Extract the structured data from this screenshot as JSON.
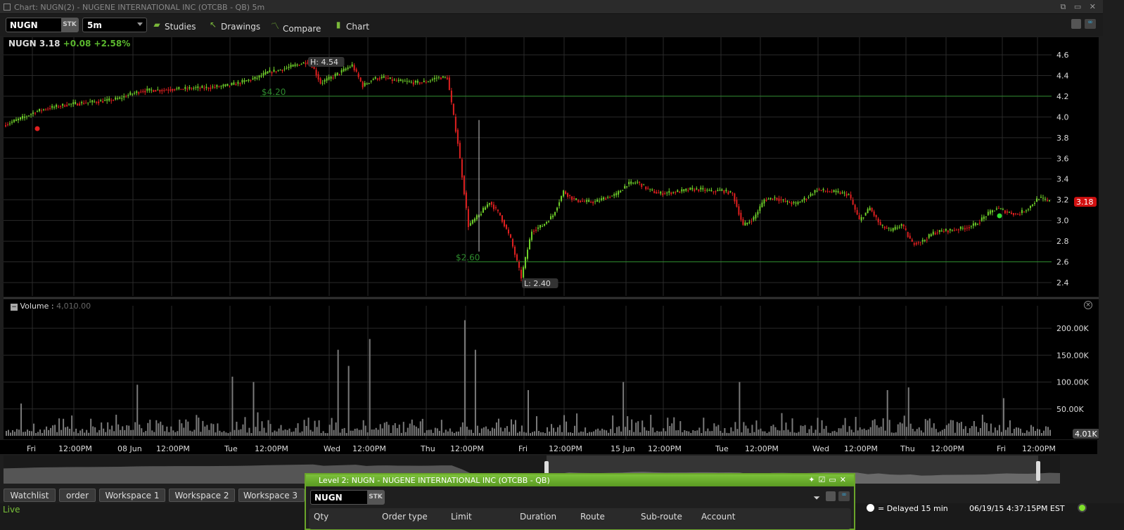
{
  "window": {
    "title": "Chart: NUGN(2) - NUGENE INTERNATIONAL INC (OTCBB - QB) 5m"
  },
  "toolbar": {
    "symbol": "NUGN",
    "sec_type": "STK",
    "interval": "5m",
    "studies": "Studies",
    "drawings": "Drawings",
    "compare": "Compare",
    "chart": "Chart"
  },
  "quote": {
    "symbol": "NUGN",
    "last": "3.18",
    "change": "+0.08",
    "change_pct": "+2.58%"
  },
  "annotations": {
    "high": "H: 4.54",
    "low": "L: 2.40",
    "line_upper": "$4.20",
    "line_lower": "$2.60",
    "last_tag": "3.18"
  },
  "volume_panel": {
    "label": "Volume :",
    "value": "4,010.00",
    "last_tag": "4.01K"
  },
  "colors": {
    "up": "#6fcf2a",
    "down": "#e02020",
    "hline": "#2e8b2e",
    "accent": "#6aa52a",
    "last_tag": "#d01010"
  },
  "chart_data": {
    "type": "candlestick",
    "price_axis": {
      "ticks": [
        "4.6",
        "4.4",
        "4.2",
        "4.0",
        "3.8",
        "3.6",
        "3.4",
        "3.2",
        "3.0",
        "2.8",
        "2.6",
        "2.4"
      ],
      "range": [
        2.4,
        4.6
      ]
    },
    "volume_axis": {
      "ticks": [
        "200.00K",
        "150.00K",
        "100.00K",
        "50.00K"
      ],
      "range": [
        0,
        200000
      ]
    },
    "x_ticks": [
      "Fri",
      "12:00PM",
      "08 Jun",
      "12:00PM",
      "Tue",
      "12:00PM",
      "Wed",
      "12:00PM",
      "Thu",
      "12:00PM",
      "Fri",
      "12:00PM",
      "15 Jun",
      "12:00PM",
      "Tue",
      "12:00PM",
      "Wed",
      "12:00PM",
      "Thu",
      "12:00PM",
      "Fri",
      "12:00PM"
    ],
    "horizontal_lines": [
      4.2,
      2.6
    ],
    "close_samples": [
      3.92,
      3.96,
      4.0,
      4.05,
      4.08,
      4.1,
      4.12,
      4.13,
      4.14,
      4.15,
      4.16,
      4.18,
      4.22,
      4.25,
      4.26,
      4.26,
      4.27,
      4.27,
      4.28,
      4.28,
      4.29,
      4.3,
      4.32,
      4.35,
      4.38,
      4.43,
      4.45,
      4.48,
      4.51,
      4.54,
      4.33,
      4.38,
      4.44,
      4.5,
      4.3,
      4.37,
      4.38,
      4.35,
      4.34,
      4.33,
      4.34,
      4.38,
      4.38,
      3.75,
      2.95,
      3.05,
      3.18,
      3.05,
      2.82,
      2.45,
      2.9,
      2.95,
      3.05,
      3.28,
      3.2,
      3.18,
      3.18,
      3.22,
      3.25,
      3.35,
      3.37,
      3.3,
      3.26,
      3.27,
      3.28,
      3.3,
      3.3,
      3.28,
      3.29,
      3.26,
      2.95,
      3.02,
      3.2,
      3.22,
      3.18,
      3.16,
      3.22,
      3.3,
      3.28,
      3.27,
      3.25,
      3.0,
      3.12,
      2.95,
      2.9,
      2.96,
      2.78,
      2.8,
      2.88,
      2.9,
      2.91,
      2.93,
      2.96,
      3.05,
      3.12,
      3.08,
      3.06,
      3.12,
      3.22,
      3.18
    ],
    "volume_spikes_k": [
      [
        1,
        60
      ],
      [
        12,
        95
      ],
      [
        21,
        110
      ],
      [
        23,
        100
      ],
      [
        31,
        160
      ],
      [
        32,
        130
      ],
      [
        34,
        180
      ],
      [
        43,
        215
      ],
      [
        44,
        160
      ],
      [
        49,
        85
      ],
      [
        58,
        100
      ],
      [
        69,
        100
      ],
      [
        83,
        85
      ],
      [
        85,
        90
      ],
      [
        94,
        70
      ]
    ]
  },
  "level2": {
    "title": "Level 2: NUGN - NUGENE INTERNATIONAL INC (OTCBB - QB)",
    "symbol": "NUGN",
    "sec_type": "STK",
    "columns": [
      "Qty",
      "Order type",
      "Limit",
      "Duration",
      "Route",
      "Sub-route",
      "Account"
    ]
  },
  "tabs": [
    "Watchlist",
    "order",
    "Workspace 1",
    "Workspace 2",
    "Workspace 3"
  ],
  "status": {
    "mode": "Live",
    "delayed": "= Delayed 15 min",
    "datetime": "06/19/15 4:37:15PM EST"
  }
}
